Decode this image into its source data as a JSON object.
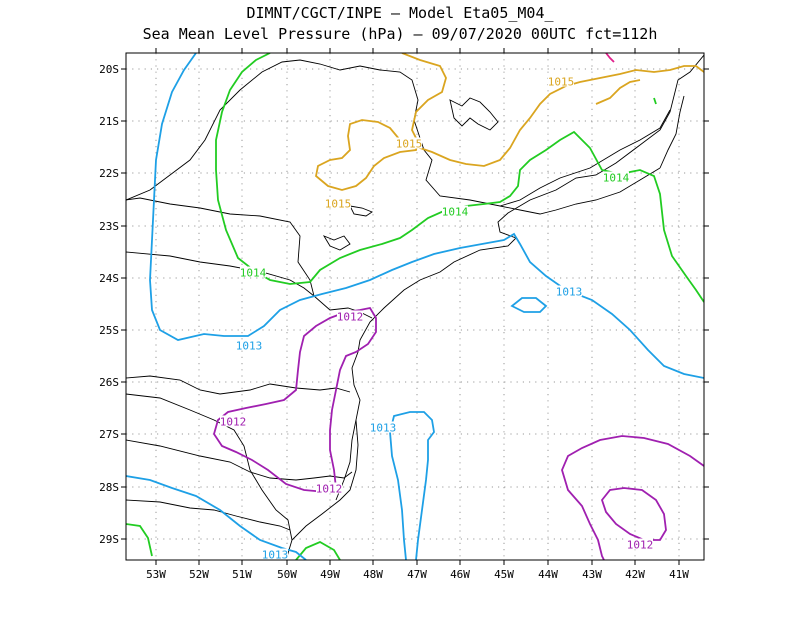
{
  "title_line1": "DIMNT/CGCT/INPE —  Model Eta05_M04_",
  "title_line2": "Sea Mean Level Pressure (hPa) — 09/07/2020 00UTC fct=112h",
  "lat_labels": [
    "20S",
    "21S",
    "22S",
    "23S",
    "24S",
    "25S",
    "26S",
    "27S",
    "28S",
    "29S"
  ],
  "lon_labels": [
    "53W",
    "52W",
    "51W",
    "50W",
    "49W",
    "48W",
    "47W",
    "46W",
    "45W",
    "44W",
    "43W",
    "42W",
    "41W"
  ],
  "colors": {
    "c1015": "#daa520",
    "c1014": "#22cc22",
    "c1013": "#1ea0e6",
    "c1012": "#a020b0",
    "c1016": "#e0208c",
    "map": "#000000",
    "grid": "#9a9a9a"
  },
  "contour_labels": [
    {
      "text": "1015",
      "level": "1015"
    },
    {
      "text": "1015",
      "level": "1015"
    },
    {
      "text": "1015",
      "level": "1015"
    },
    {
      "text": "1014",
      "level": "1014"
    },
    {
      "text": "1014",
      "level": "1014"
    },
    {
      "text": "1014",
      "level": "1014"
    },
    {
      "text": "1013",
      "level": "1013"
    },
    {
      "text": "1013",
      "level": "1013"
    },
    {
      "text": "1013",
      "level": "1013"
    },
    {
      "text": "1013",
      "level": "1013"
    },
    {
      "text": "1012",
      "level": "1012"
    },
    {
      "text": "1012",
      "level": "1012"
    },
    {
      "text": "1012",
      "level": "1012"
    },
    {
      "text": "1012",
      "level": "1012"
    }
  ]
}
